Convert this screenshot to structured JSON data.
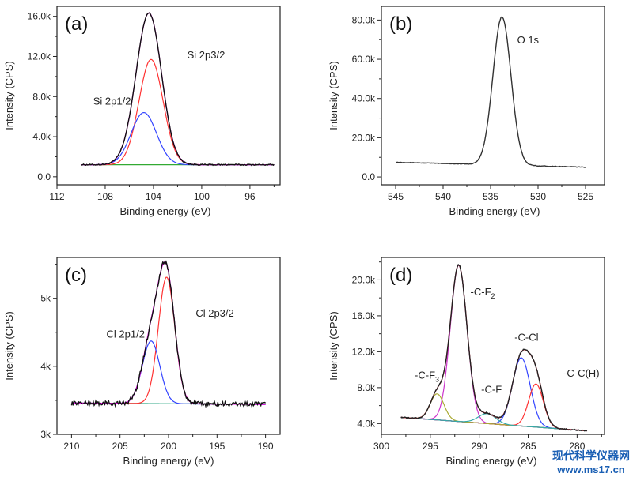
{
  "chart_data": [
    {
      "type": "line",
      "panel_label": "(a)",
      "xlabel": "Binding energy (eV)",
      "ylabel": "Intensity (CPS)",
      "xlim": [
        112,
        93.5
      ],
      "ylim": [
        -800,
        17000
      ],
      "x_ticks": [
        112,
        108,
        104,
        100,
        96
      ],
      "y_ticks": [
        0,
        4000,
        8000,
        12000,
        16000
      ],
      "y_tick_labels": [
        "0.0",
        "4.0k",
        "8.0k",
        "12.0k",
        "16.0k"
      ],
      "annotations": [
        {
          "text": "Si 2p3/2",
          "at": [
            101.2,
            11800
          ]
        },
        {
          "text": "Si 2p1/2",
          "at": [
            109.0,
            7200
          ]
        }
      ],
      "series": [
        {
          "color": "#111111",
          "kind": "measured",
          "noise": 60,
          "background": [
            1200,
            1200
          ],
          "peaks": [
            [
              104.2,
              10500,
              1.0
            ],
            [
              104.8,
              5200,
              1.05
            ]
          ],
          "x": [
            110,
            94
          ]
        },
        {
          "color": "#ee00ee",
          "kind": "envelope",
          "background": [
            1200,
            1200
          ],
          "peaks": [
            [
              104.2,
              10500,
              1.0
            ],
            [
              104.8,
              5200,
              1.05
            ]
          ],
          "x": [
            110,
            94
          ]
        },
        {
          "color": "#ff3333",
          "kind": "component",
          "background": [
            1200,
            1200
          ],
          "peaks": [
            [
              104.2,
              10500,
              1.0
            ]
          ],
          "x": [
            110,
            94
          ]
        },
        {
          "color": "#3344ff",
          "kind": "component",
          "background": [
            1200,
            1200
          ],
          "peaks": [
            [
              104.8,
              5200,
              1.05
            ]
          ],
          "x": [
            110,
            94
          ]
        },
        {
          "color": "#33aa33",
          "kind": "baseline",
          "background": [
            1200,
            1200
          ],
          "peaks": [],
          "x": [
            110,
            94
          ]
        }
      ]
    },
    {
      "type": "line",
      "panel_label": "(b)",
      "xlabel": "Binding energy (eV)",
      "ylabel": "Intensity (CPS)",
      "xlim": [
        546.5,
        523
      ],
      "ylim": [
        -4000,
        87000
      ],
      "x_ticks": [
        545,
        540,
        535,
        530,
        525
      ],
      "y_ticks": [
        0,
        20000,
        40000,
        60000,
        80000
      ],
      "y_tick_labels": [
        "0.0",
        "20.0k",
        "40.0k",
        "60.0k",
        "80.0k"
      ],
      "annotations": [
        {
          "text": "O 1s",
          "at": [
            532.2,
            68000
          ]
        }
      ],
      "series": [
        {
          "color": "#333333",
          "kind": "measured",
          "noise": 150,
          "background": [
            7500,
            5000
          ],
          "peaks": [
            [
              533.8,
              75500,
              0.95
            ]
          ],
          "x": [
            545,
            525
          ]
        }
      ]
    },
    {
      "type": "line",
      "panel_label": "(c)",
      "xlabel": "Binding energy (eV)",
      "ylabel": "Intensity (CPS)",
      "xlim": [
        211.5,
        188.5
      ],
      "ylim": [
        3000,
        5600
      ],
      "x_ticks": [
        210,
        205,
        200,
        195,
        190
      ],
      "y_ticks": [
        3000,
        4000,
        5000
      ],
      "y_tick_labels": [
        "3k",
        "4k",
        "5k"
      ],
      "annotations": [
        {
          "text": "Cl 2p3/2",
          "at": [
            197.2,
            4730
          ]
        },
        {
          "text": "Cl 2p1/2",
          "at": [
            206.4,
            4420
          ]
        }
      ],
      "series": [
        {
          "color": "#111111",
          "kind": "measured",
          "noise": 35,
          "background": [
            3460,
            3440
          ],
          "peaks": [
            [
              200.2,
              1860,
              0.85
            ],
            [
              201.8,
              920,
              0.9
            ]
          ],
          "x": [
            210,
            190
          ]
        },
        {
          "color": "#ee00ee",
          "kind": "envelope",
          "background": [
            3460,
            3440
          ],
          "peaks": [
            [
              200.2,
              1860,
              0.85
            ],
            [
              201.8,
              920,
              0.9
            ]
          ],
          "x": [
            210,
            190
          ]
        },
        {
          "color": "#ff3333",
          "kind": "component",
          "background": [
            3460,
            3440
          ],
          "peaks": [
            [
              200.2,
              1860,
              0.85
            ]
          ],
          "x": [
            210,
            190
          ]
        },
        {
          "color": "#3344ff",
          "kind": "component",
          "background": [
            3460,
            3440
          ],
          "peaks": [
            [
              201.8,
              920,
              0.9
            ]
          ],
          "x": [
            210,
            190
          ]
        },
        {
          "color": "#33aa88",
          "kind": "baseline",
          "background": [
            3460,
            3440
          ],
          "peaks": [],
          "x": [
            210,
            190
          ]
        }
      ]
    },
    {
      "type": "line",
      "panel_label": "(d)",
      "xlabel": "Binding energy (eV)",
      "ylabel": "Intensity (CPS)",
      "xlim": [
        300,
        277.2
      ],
      "ylim": [
        2800,
        22500
      ],
      "x_ticks": [
        300,
        295,
        290,
        285,
        280
      ],
      "y_ticks": [
        4000,
        8000,
        12000,
        16000,
        20000
      ],
      "y_tick_labels": [
        "4.0k",
        "8.0k",
        "12.0k",
        "16.0k",
        "20.0k"
      ],
      "annotations": [
        {
          "text": "-C-F",
          "sub": "2",
          "at": [
            290.9,
            18300
          ]
        },
        {
          "text": "-C-Cl",
          "at": [
            286.4,
            13200
          ]
        },
        {
          "text": "-C-C(H)",
          "at": [
            281.4,
            9200
          ]
        },
        {
          "text": "-C-F",
          "at": [
            289.8,
            7400
          ]
        },
        {
          "text": "-C-F",
          "sub": "3",
          "at": [
            296.6,
            9000
          ]
        }
      ],
      "series": [
        {
          "color": "#222222",
          "kind": "measured",
          "noise": 70,
          "background": [
            4700,
            3200
          ],
          "peaks": [
            [
              292.1,
              17400,
              0.85
            ],
            [
              285.7,
              7600,
              0.9
            ],
            [
              284.2,
              4800,
              0.75
            ],
            [
              294.3,
              2900,
              0.7
            ],
            [
              289.2,
              1100,
              0.9
            ]
          ],
          "x": [
            298,
            279
          ]
        },
        {
          "color": "#ee3344",
          "kind": "envelope",
          "background": [
            4700,
            3200
          ],
          "peaks": [
            [
              292.1,
              17400,
              0.85
            ],
            [
              285.7,
              7600,
              0.9
            ],
            [
              284.2,
              4800,
              0.75
            ],
            [
              294.3,
              2900,
              0.7
            ],
            [
              289.2,
              1100,
              0.9
            ]
          ],
          "x": [
            298,
            279
          ]
        },
        {
          "color": "#cc33cc",
          "kind": "component",
          "background": [
            4700,
            3200
          ],
          "peaks": [
            [
              292.1,
              17400,
              0.85
            ]
          ],
          "x": [
            298,
            279
          ]
        },
        {
          "color": "#3344ff",
          "kind": "component",
          "background": [
            4700,
            3200
          ],
          "peaks": [
            [
              285.7,
              7600,
              0.9
            ]
          ],
          "x": [
            298,
            279
          ]
        },
        {
          "color": "#ff3333",
          "kind": "component",
          "background": [
            4700,
            3200
          ],
          "peaks": [
            [
              284.2,
              4800,
              0.75
            ]
          ],
          "x": [
            298,
            279
          ]
        },
        {
          "color": "#aaaa33",
          "kind": "component",
          "background": [
            4700,
            3200
          ],
          "peaks": [
            [
              294.3,
              2900,
              0.7
            ]
          ],
          "x": [
            298,
            279
          ]
        },
        {
          "color": "#33aaaa",
          "kind": "component",
          "background": [
            4700,
            3200
          ],
          "peaks": [
            [
              289.2,
              1100,
              0.9
            ]
          ],
          "x": [
            298,
            279
          ]
        },
        {
          "color": "#333399",
          "kind": "baseline",
          "background": [
            4700,
            3200
          ],
          "peaks": [],
          "x": [
            298,
            279
          ]
        }
      ]
    }
  ],
  "watermark": {
    "line1": "现代科学仪器网",
    "line2": "www.ms17.cn"
  }
}
